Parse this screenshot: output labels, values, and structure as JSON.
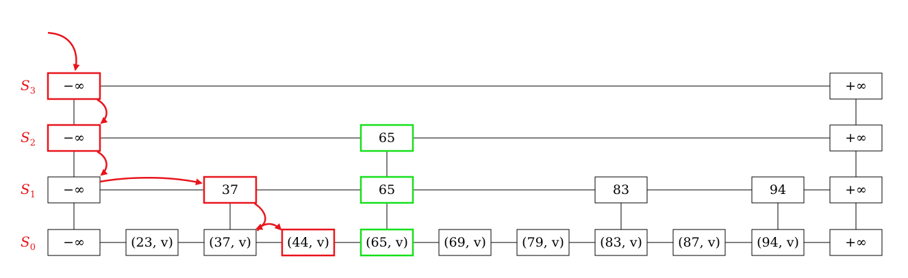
{
  "colors": {
    "path": "#e8141b",
    "found": "#14e01a",
    "normal": "#000000",
    "background": "#ffffff"
  },
  "levels": [
    {
      "main": "S",
      "sub": "3",
      "nodes": [
        {
          "text": "−∞",
          "state": "path"
        },
        {
          "text": "+∞",
          "state": "normal"
        }
      ]
    },
    {
      "main": "S",
      "sub": "2",
      "nodes": [
        {
          "text": "−∞",
          "state": "path"
        },
        {
          "text": "65",
          "state": "found"
        },
        {
          "text": "+∞",
          "state": "normal"
        }
      ]
    },
    {
      "main": "S",
      "sub": "1",
      "nodes": [
        {
          "text": "−∞",
          "state": "normal"
        },
        {
          "text": "37",
          "state": "path"
        },
        {
          "text": "65",
          "state": "found"
        },
        {
          "text": "83",
          "state": "normal"
        },
        {
          "text": "94",
          "state": "normal"
        },
        {
          "text": "+∞",
          "state": "normal"
        }
      ]
    },
    {
      "main": "S",
      "sub": "0",
      "nodes": [
        {
          "text": "−∞",
          "state": "normal"
        },
        {
          "text": "(23, v)",
          "state": "normal"
        },
        {
          "text": "(37, v)",
          "state": "normal"
        },
        {
          "text": "(44, v)",
          "state": "path"
        },
        {
          "text": "(65, v)",
          "state": "found"
        },
        {
          "text": "(69, v)",
          "state": "normal"
        },
        {
          "text": "(79, v)",
          "state": "normal"
        },
        {
          "text": "(83, v)",
          "state": "normal"
        },
        {
          "text": "(87, v)",
          "state": "normal"
        },
        {
          "text": "(94, v)",
          "state": "normal"
        },
        {
          "text": "+∞",
          "state": "normal"
        }
      ]
    }
  ]
}
